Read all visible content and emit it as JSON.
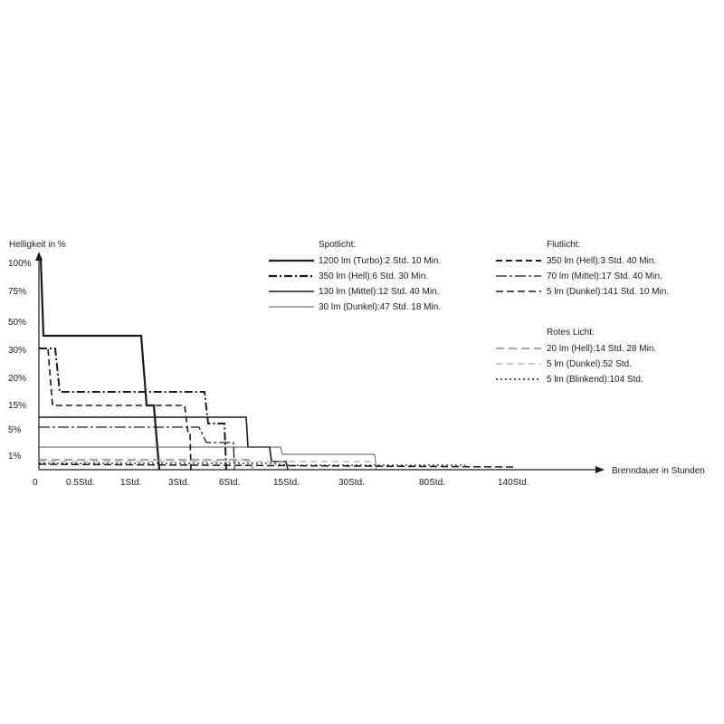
{
  "chart_data": {
    "type": "line",
    "ylabel": "Helligkeit in %",
    "xlabel": "Brenndauer in Stunden",
    "y_ticks": [
      "1%",
      "5%",
      "15%",
      "20%",
      "30%",
      "50%",
      "75%",
      "100%"
    ],
    "x_ticks": [
      "0",
      "0.5Std.",
      "1Std.",
      "3Std.",
      "6Std.",
      "15Std.",
      "30Std.",
      "80Std.",
      "140Std."
    ],
    "x_scale": "non-linear (custom tick spacing)",
    "y_scale": "non-linear (custom tick spacing)",
    "grid": false,
    "legend_groups": [
      {
        "title": "Spotlicht:",
        "entries": [
          {
            "label": "1200 lm (Turbo):2 Std. 10 Min.",
            "series": "spot_turbo"
          },
          {
            "label": "350 lm (Hell):6 Std. 30 Min.",
            "series": "spot_hell"
          },
          {
            "label": "130 lm (Mittel):12 Std. 40 Min.",
            "series": "spot_mittel"
          },
          {
            "label": "30 lm (Dunkel):47 Std. 18 Min.",
            "series": "spot_dunkel"
          }
        ]
      },
      {
        "title": "Flutlicht:",
        "entries": [
          {
            "label": "350 lm (Hell):3 Std. 40 Min.",
            "series": "flut_hell"
          },
          {
            "label": "70 lm (Mittel):17 Std. 40 Min.",
            "series": "flut_mittel"
          },
          {
            "label": "5 lm (Dunkel):141 Std. 10 Min.",
            "series": "flut_dunkel"
          }
        ]
      },
      {
        "title": "Rotes Licht:",
        "entries": [
          {
            "label": "20 lm (Hell):14 Std. 28 Min.",
            "series": "rot_hell"
          },
          {
            "label": "5 lm (Dunkel):52 Std.",
            "series": "rot_dunkel"
          },
          {
            "label": "5 lm (Blinkend):104 Std.",
            "series": "rot_blink"
          }
        ]
      }
    ],
    "series": [
      {
        "id": "spot_turbo",
        "color": "#1a1a1a",
        "points": [
          [
            0,
            100
          ],
          [
            0.03,
            100
          ],
          [
            0.05,
            35
          ],
          [
            1.05,
            35
          ],
          [
            1.15,
            15
          ],
          [
            1.3,
            15
          ],
          [
            1.35,
            0
          ]
        ]
      },
      {
        "id": "spot_hell",
        "color": "#1a1a1a",
        "points": [
          [
            0,
            30
          ],
          [
            0.14,
            30
          ],
          [
            0.18,
            18
          ],
          [
            3.1,
            18
          ],
          [
            3.3,
            5
          ],
          [
            3.7,
            5
          ],
          [
            3.8,
            0
          ]
        ]
      },
      {
        "id": "spot_mittel",
        "color": "#1a1a1a",
        "points": [
          [
            0,
            8
          ],
          [
            5.6,
            8
          ],
          [
            5.7,
            3
          ],
          [
            8,
            3
          ],
          [
            8.1,
            1
          ],
          [
            10.1,
            1
          ],
          [
            10.3,
            0
          ]
        ]
      },
      {
        "id": "spot_dunkel",
        "color": "#555555",
        "points": [
          [
            0,
            2
          ],
          [
            15,
            2
          ],
          [
            15.4,
            1.2
          ],
          [
            30,
            1.2
          ],
          [
            31,
            0
          ]
        ]
      },
      {
        "id": "flut_hell",
        "color": "#1a1a1a",
        "points": [
          [
            0,
            30
          ],
          [
            0.18,
            30
          ],
          [
            0.25,
            15
          ],
          [
            2.8,
            15
          ],
          [
            3,
            6
          ],
          [
            3.08,
            6
          ],
          [
            3.12,
            0
          ]
        ]
      },
      {
        "id": "flut_mittel",
        "color": "#1a1a1a",
        "points": [
          [
            0,
            6
          ],
          [
            3.1,
            6
          ],
          [
            3.3,
            3
          ],
          [
            6,
            3
          ],
          [
            6.05,
            0
          ]
        ]
      },
      {
        "id": "flut_dunkel",
        "color": "#1a1a1a",
        "points": [
          [
            0,
            0.3
          ],
          [
            140,
            0.3
          ]
        ]
      },
      {
        "id": "rot_hell",
        "color": "#888888",
        "points": [
          [
            0,
            0.3
          ],
          [
            9.8,
            0.3
          ],
          [
            10,
            0
          ]
        ]
      },
      {
        "id": "rot_dunkel",
        "color": "#9a9a9a",
        "points": [
          [
            0,
            0.5
          ],
          [
            30,
            0.5
          ]
        ]
      },
      {
        "id": "rot_blink",
        "color": "#1a1a1a",
        "points": [
          [
            0,
            0.4
          ],
          [
            15.5,
            0.4
          ],
          [
            16,
            0.2
          ],
          [
            55,
            0.2
          ]
        ]
      }
    ]
  }
}
